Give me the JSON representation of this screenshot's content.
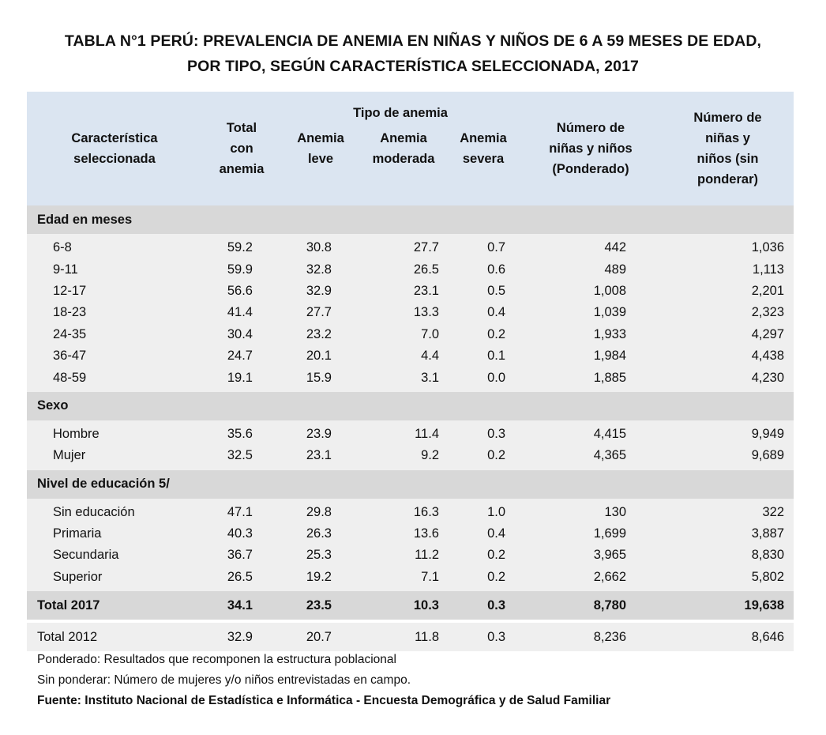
{
  "title": {
    "line1": "TABLA N°1 PERÚ: PREVALENCIA DE ANEMIA EN NIÑAS Y NIÑOS DE 6 A 59 MESES DE EDAD,",
    "line2": "POR TIPO, SEGÚN CARACTERÍSTICA SELECCIONADA, 2017"
  },
  "header": {
    "caracteristica": [
      "Característica",
      "seleccionada"
    ],
    "total": [
      "Total",
      "con",
      "anemia"
    ],
    "tipo": "Tipo de anemia",
    "leve": [
      "Anemia",
      "leve"
    ],
    "moderada": [
      "Anemia",
      "moderada"
    ],
    "severa": [
      "Anemia",
      "severa"
    ],
    "ponderado": [
      "Número de",
      "niñas y niños",
      "(Ponderado)"
    ],
    "sin_ponderar": [
      "Número de",
      "niñas y",
      "niños (sin",
      "ponderar)"
    ]
  },
  "sections": [
    {
      "name": "Edad en meses",
      "rows": [
        [
          "6-8",
          "59.2",
          "30.8",
          "27.7",
          "0.7",
          "442",
          "1,036"
        ],
        [
          "9-11",
          "59.9",
          "32.8",
          "26.5",
          "0.6",
          "489",
          "1,113"
        ],
        [
          "12-17",
          "56.6",
          "32.9",
          "23.1",
          "0.5",
          "1,008",
          "2,201"
        ],
        [
          "18-23",
          "41.4",
          "27.7",
          "13.3",
          "0.4",
          "1,039",
          "2,323"
        ],
        [
          "24-35",
          "30.4",
          "23.2",
          "7.0",
          "0.2",
          "1,933",
          "4,297"
        ],
        [
          "36-47",
          "24.7",
          "20.1",
          "4.4",
          "0.1",
          "1,984",
          "4,438"
        ],
        [
          "48-59",
          "19.1",
          "15.9",
          "3.1",
          "0.0",
          "1,885",
          "4,230"
        ]
      ]
    },
    {
      "name": "Sexo",
      "rows": [
        [
          "Hombre",
          "35.6",
          "23.9",
          "11.4",
          "0.3",
          "4,415",
          "9,949"
        ],
        [
          "Mujer",
          "32.5",
          "23.1",
          "9.2",
          "0.2",
          "4,365",
          "9,689"
        ]
      ]
    },
    {
      "name": "Nivel de educación 5/",
      "rows": [
        [
          "Sin educación",
          "47.1",
          "29.8",
          "16.3",
          "1.0",
          "130",
          "322"
        ],
        [
          "Primaria",
          "40.3",
          "26.3",
          "13.6",
          "0.4",
          "1,699",
          "3,887"
        ],
        [
          "Secundaria",
          "36.7",
          "25.3",
          "11.2",
          "0.2",
          "3,965",
          "8,830"
        ],
        [
          "Superior",
          "26.5",
          "19.2",
          "7.1",
          "0.2",
          "2,662",
          "5,802"
        ]
      ]
    }
  ],
  "total_2017": [
    "Total 2017",
    "34.1",
    "23.5",
    "10.3",
    "0.3",
    "8,780",
    "19,638"
  ],
  "total_2012": [
    "Total 2012",
    "32.9",
    "20.7",
    "11.8",
    "0.3",
    "8,236",
    "8,646"
  ],
  "notes": {
    "ponderado": "Ponderado: Resultados que recomponen la estructura poblacional",
    "sin_ponderar": "Sin ponderar: Número de mujeres y/o niños entrevistadas en campo.",
    "fuente": "Fuente: Instituto Nacional de Estadística e Informática - Encuesta Demográfica y de Salud Familiar"
  }
}
